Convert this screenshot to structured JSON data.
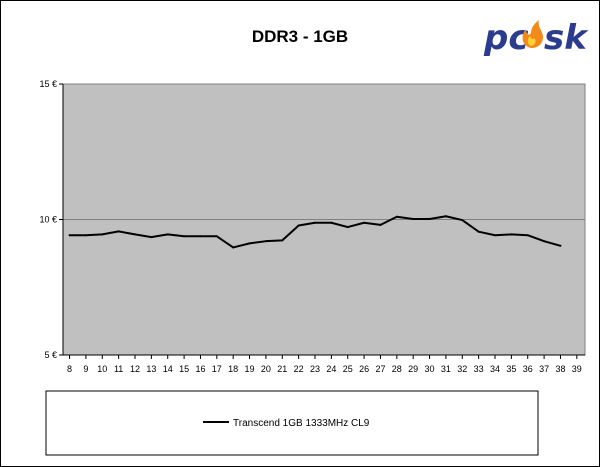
{
  "chart_data": {
    "type": "line",
    "title": "DDR3 - 1GB",
    "xlabel": "",
    "ylabel": "",
    "x": [
      8,
      9,
      10,
      11,
      12,
      13,
      14,
      15,
      16,
      17,
      18,
      19,
      20,
      21,
      22,
      23,
      24,
      25,
      26,
      27,
      28,
      29,
      30,
      31,
      32,
      33,
      34,
      35,
      36,
      37,
      38
    ],
    "x_ticks": [
      "8",
      "9",
      "10",
      "11",
      "12",
      "13",
      "14",
      "15",
      "16",
      "17",
      "18",
      "19",
      "20",
      "21",
      "22",
      "23",
      "24",
      "25",
      "26",
      "27",
      "28",
      "29",
      "30",
      "31",
      "32",
      "33",
      "34",
      "35",
      "36",
      "37",
      "38",
      "39"
    ],
    "y_ticks": [
      "5 €",
      "10 €",
      "15 €"
    ],
    "ylim": [
      5,
      15
    ],
    "grid": "horizontal",
    "series": [
      {
        "name": "Transcend 1GB 1333MHz CL9",
        "color": "#000000",
        "values": [
          9.42,
          9.42,
          9.45,
          9.56,
          9.45,
          9.35,
          9.45,
          9.38,
          9.38,
          9.38,
          8.97,
          9.12,
          9.2,
          9.23,
          9.78,
          9.88,
          9.88,
          9.72,
          9.88,
          9.8,
          10.1,
          10.02,
          10.02,
          10.12,
          9.98,
          9.55,
          9.42,
          9.45,
          9.42,
          9.2,
          9.03
        ]
      }
    ],
    "legend_position": "bottom"
  },
  "logo": {
    "text": "pcesk",
    "colors": {
      "main": "#2b3c8f",
      "flame": "#f28a1a"
    }
  },
  "colors": {
    "plot_bg": "#c0c0c0",
    "gridline": "#808080"
  }
}
